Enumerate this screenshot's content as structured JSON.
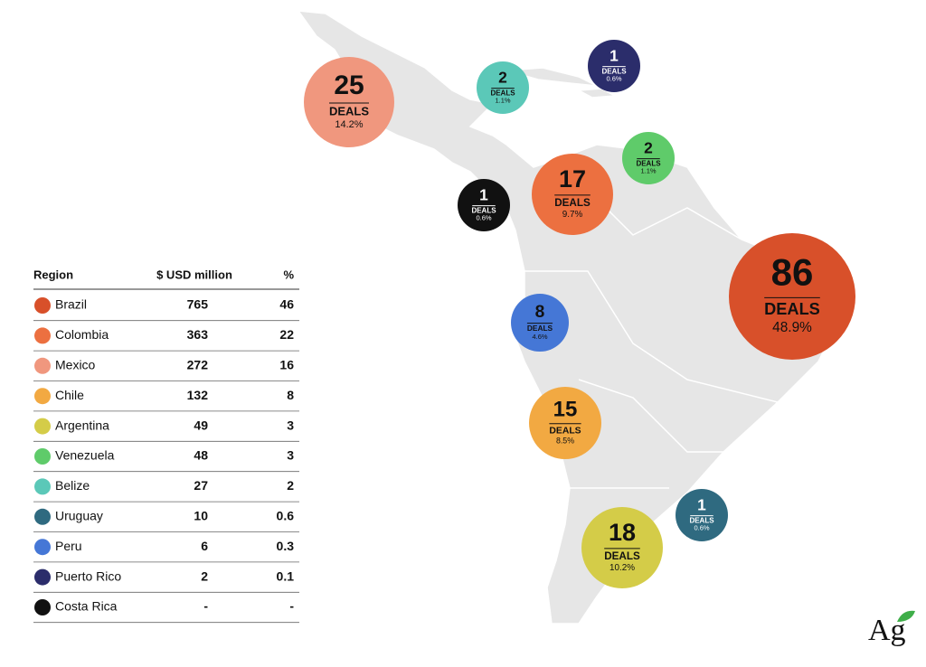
{
  "table": {
    "header": [
      "Region",
      "$ USD million",
      "%"
    ],
    "rows": [
      [
        "Brazil",
        "765",
        "46"
      ],
      [
        "Colombia",
        "363",
        "22"
      ],
      [
        "Mexico",
        "272",
        "16"
      ],
      [
        "Chile",
        "132",
        "8"
      ],
      [
        "Argentina",
        "49",
        "3"
      ],
      [
        "Venezuela",
        "48",
        "3"
      ],
      [
        "Belize",
        "27",
        "2"
      ],
      [
        "Uruguay",
        "10",
        "0.6"
      ],
      [
        "Peru",
        "6",
        "0.3"
      ],
      [
        "Puerto Rico",
        "2",
        "0.1"
      ],
      [
        "Costa Rica",
        "-",
        "-"
      ]
    ],
    "row_colors": [
      "#d8502a",
      "#ec7040",
      "#f0977e",
      "#f2a942",
      "#d4cc48",
      "#5fcb6a",
      "#5bc8b8",
      "#2f6a80",
      "#4577d6",
      "#2b2d6b",
      "#111111"
    ]
  },
  "bubbles": [
    {
      "deals": "25",
      "unit": "DEALS",
      "share": "14.2%",
      "color": "#f0977e"
    },
    {
      "deals": "2",
      "unit": "DEALS",
      "share": "1.1%",
      "color": "#5bc8b8"
    },
    {
      "deals": "1",
      "unit": "DEALS",
      "share": "0.6%",
      "color": "#2b2d6b"
    },
    {
      "deals": "2",
      "unit": "DEALS",
      "share": "1.1%",
      "color": "#5fcb6a"
    },
    {
      "deals": "17",
      "unit": "DEALS",
      "share": "9.7%",
      "color": "#ec7040"
    },
    {
      "deals": "1",
      "unit": "DEALS",
      "share": "0.6%",
      "color": "#111111"
    },
    {
      "deals": "86",
      "unit": "DEALS",
      "share": "48.9%",
      "color": "#d8502a"
    },
    {
      "deals": "8",
      "unit": "DEALS",
      "share": "4.6%",
      "color": "#4577d6"
    },
    {
      "deals": "15",
      "unit": "DEALS",
      "share": "8.5%",
      "color": "#f2a942"
    },
    {
      "deals": "1",
      "unit": "DEALS",
      "share": "0.6%",
      "color": "#2f6a80"
    },
    {
      "deals": "18",
      "unit": "DEALS",
      "share": "10.2%",
      "color": "#d4cc48"
    }
  ],
  "logo": "Ag"
}
